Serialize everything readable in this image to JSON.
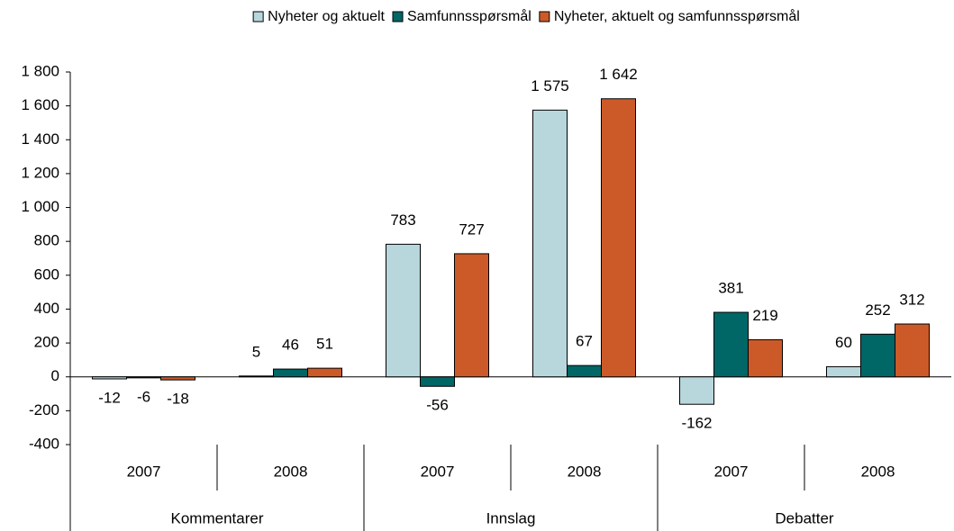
{
  "chart_data": {
    "type": "bar",
    "categories": [
      "2007",
      "2008",
      "2007",
      "2008",
      "2007",
      "2008"
    ],
    "groups": [
      "Kommentarer",
      "Innslag",
      "Debatter"
    ],
    "series": [
      {
        "name": "Nyheter og aktuelt",
        "color": "#b7d7dc",
        "values": [
          -12,
          5,
          783,
          1575,
          -162,
          60
        ],
        "value_labels": [
          "-12",
          "5",
          "783",
          "1 575",
          "-162",
          "60"
        ]
      },
      {
        "name": "Samfunnsspørsmål",
        "color": "#006666",
        "values": [
          -6,
          46,
          -56,
          67,
          381,
          252
        ]
      },
      {
        "name": "Nyheter, aktuelt og samfunnsspørsmål",
        "color": "#cc5a28",
        "values": [
          -18,
          51,
          727,
          1642,
          219,
          312
        ],
        "value_labels": [
          "-18",
          "51",
          "727",
          "1 642",
          "219",
          "312"
        ]
      }
    ],
    "ylim": [
      -400,
      1800
    ],
    "yticks": [
      -400,
      -200,
      0,
      200,
      400,
      600,
      800,
      {
        "value": 1000,
        "label": "1 000"
      },
      {
        "value": 1200,
        "label": "1 200"
      },
      {
        "value": 1400,
        "label": "1 400"
      },
      {
        "value": 1600,
        "label": "1 600"
      },
      {
        "value": 1800,
        "label": "1 800"
      }
    ],
    "legend": "top"
  }
}
